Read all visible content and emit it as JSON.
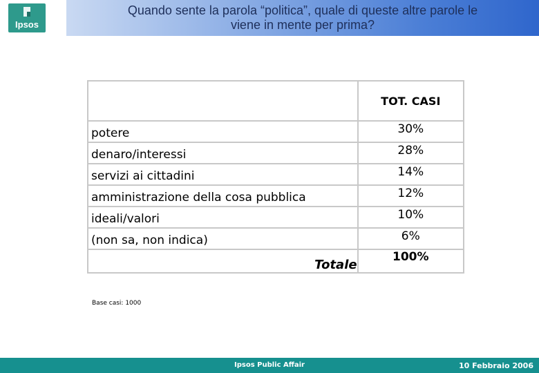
{
  "header": {
    "logo_text": "Ipsos",
    "title_line1": "Quando sente la parola “politica”, quale di queste altre parole le",
    "title_line2": "viene in mente per prima?"
  },
  "table": {
    "column_header": "TOT. CASI",
    "rows": [
      {
        "label": "potere",
        "value": "30%"
      },
      {
        "label": "denaro/interessi",
        "value": "28%"
      },
      {
        "label": "servizi ai cittadini",
        "value": "14%"
      },
      {
        "label": "amministrazione della cosa pubblica",
        "value": "12%"
      },
      {
        "label": "ideali/valori",
        "value": "10%"
      },
      {
        "label": "(non sa, non indica)",
        "value": "6%"
      }
    ],
    "total_label": "Totale",
    "total_value": "100%"
  },
  "base_note": "Base casi: 1000",
  "footer": {
    "center_text": "Ipsos Public Affair",
    "date": "10 Febbraio 2006"
  },
  "colors": {
    "brand_teal": "#16908f",
    "title_blue": "#2f66cc"
  }
}
